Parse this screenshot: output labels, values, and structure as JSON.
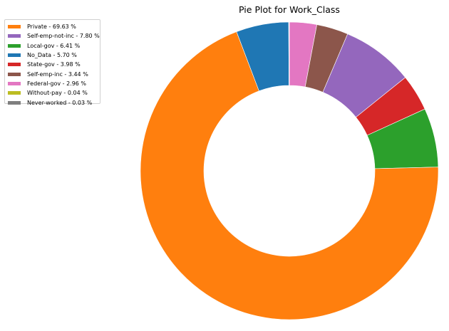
{
  "chart_data": {
    "type": "pie",
    "title": "Pie Plot for Work_Class",
    "donut": true,
    "start_angle_deg": 90,
    "direction": "clockwise",
    "slices": [
      {
        "label": "Private",
        "value": 69.63,
        "color": "#ff7f0e"
      },
      {
        "label": "Self-emp-not-inc",
        "value": 7.8,
        "color": "#9467bd"
      },
      {
        "label": "Local-gov",
        "value": 6.41,
        "color": "#2ca02c"
      },
      {
        "label": "No_Data",
        "value": 5.7,
        "color": "#1f77b4"
      },
      {
        "label": "State-gov",
        "value": 3.98,
        "color": "#d62728"
      },
      {
        "label": "Self-emp-inc",
        "value": 3.44,
        "color": "#8c564b"
      },
      {
        "label": "Federal-gov",
        "value": 2.96,
        "color": "#e377c2"
      },
      {
        "label": "Without-pay",
        "value": 0.04,
        "color": "#bcbd22"
      },
      {
        "label": "Never-worked",
        "value": 0.03,
        "color": "#7f7f7f"
      }
    ],
    "slice_order": [
      "Federal-gov",
      "Self-emp-inc",
      "Self-emp-not-inc",
      "State-gov",
      "Local-gov",
      "Private",
      "No_Data",
      "Without-pay",
      "Never-worked"
    ],
    "legend": {
      "placement": "upper-left",
      "entries": [
        "Private - 69.63 %",
        "Self-emp-not-inc - 7.80 %",
        "Local-gov - 6.41 %",
        "No_Data - 5.70 %",
        "State-gov - 3.98 %",
        "Self-emp-inc - 3.44 %",
        "Federal-gov - 2.96 %",
        "Without-pay - 0.04 %",
        "Never-worked - 0.03 %"
      ]
    }
  }
}
